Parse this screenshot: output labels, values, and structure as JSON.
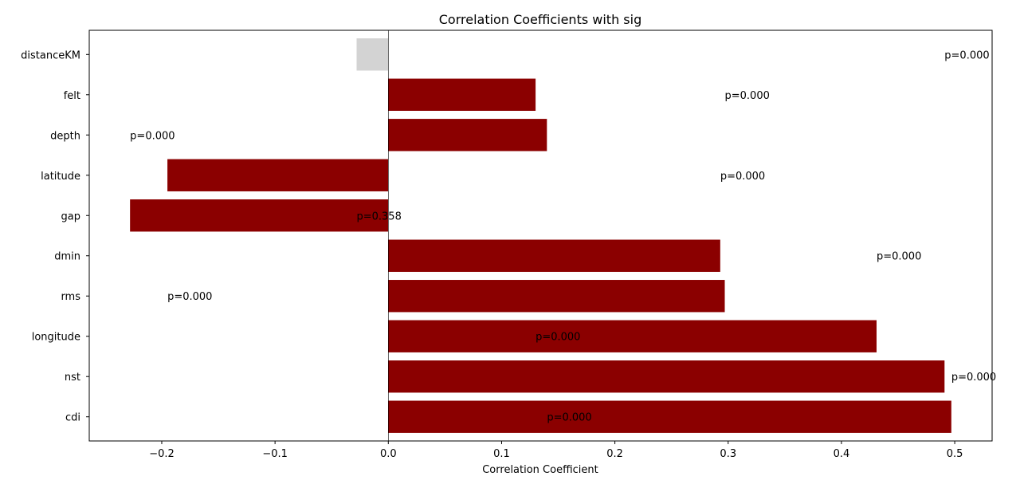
{
  "chart_data": {
    "type": "bar",
    "orientation": "horizontal",
    "title": "Correlation Coefficients with sig",
    "xlabel": "Correlation Coefficient",
    "ylabel": "",
    "xlim": [
      -0.264,
      0.533
    ],
    "x_ticks": [
      "−0.2",
      "−0.1",
      "0.0",
      "0.1",
      "0.2",
      "0.3",
      "0.4",
      "0.5"
    ],
    "x_tick_values": [
      -0.2,
      -0.1,
      0.0,
      0.1,
      0.2,
      0.3,
      0.4,
      0.5
    ],
    "grid": false,
    "categories": [
      "distanceKM",
      "felt",
      "depth",
      "latitude",
      "gap",
      "dmin",
      "rms",
      "longitude",
      "nst",
      "cdi"
    ],
    "values": [
      -0.028,
      0.13,
      0.14,
      -0.195,
      -0.228,
      0.293,
      0.297,
      0.431,
      0.491,
      0.497
    ],
    "colors": [
      "#d3d3d3",
      "#8b0000",
      "#8b0000",
      "#8b0000",
      "#8b0000",
      "#8b0000",
      "#8b0000",
      "#8b0000",
      "#8b0000",
      "#8b0000"
    ],
    "annotations": [
      {
        "text": "p=0.000",
        "x": 0.491,
        "category": "distanceKM"
      },
      {
        "text": "p=0.000",
        "x": 0.297,
        "category": "felt"
      },
      {
        "text": "p=0.000",
        "x": -0.228,
        "category": "depth"
      },
      {
        "text": "p=0.000",
        "x": 0.293,
        "category": "latitude"
      },
      {
        "text": "p=0.358",
        "x": -0.028,
        "category": "gap"
      },
      {
        "text": "p=0.000",
        "x": 0.431,
        "category": "dmin"
      },
      {
        "text": "p=0.000",
        "x": -0.195,
        "category": "rms"
      },
      {
        "text": "p=0.000",
        "x": 0.13,
        "category": "longitude"
      },
      {
        "text": "p=0.000",
        "x": 0.497,
        "category": "nst"
      },
      {
        "text": "p=0.000",
        "x": 0.14,
        "category": "cdi"
      }
    ]
  }
}
